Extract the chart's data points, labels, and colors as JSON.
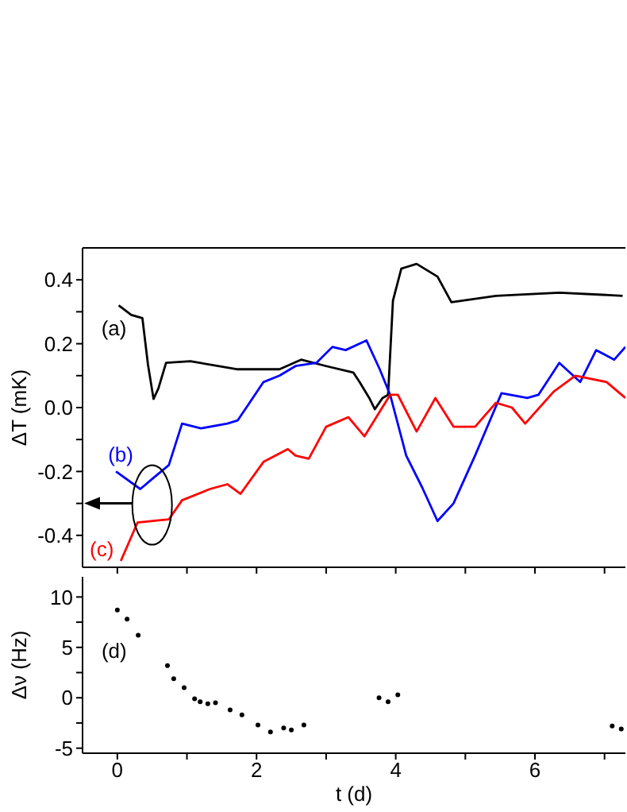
{
  "chart_data": [
    {
      "type": "line",
      "ylabel": "ΔT (mK)",
      "tick_labels": "y",
      "marker": "none",
      "xlim": [
        -0.5,
        7.3
      ],
      "xticks": [
        {
          "value": 0,
          "label": null
        },
        {
          "value": 1,
          "label": null
        },
        {
          "value": 2,
          "label": null
        },
        {
          "value": 3,
          "label": null
        },
        {
          "value": 4,
          "label": null
        },
        {
          "value": 5,
          "label": null
        },
        {
          "value": 6,
          "label": null
        },
        {
          "value": 7,
          "label": null
        }
      ],
      "ylim": [
        -0.5,
        0.5
      ],
      "yticks": [
        -0.4,
        {
          "value": -0.3,
          "label": null
        },
        -0.2,
        {
          "value": -0.1,
          "label": null
        },
        {
          "value": 0,
          "label": "0.0"
        },
        {
          "value": 0.1,
          "label": null
        },
        0.2,
        {
          "value": 0.3,
          "label": null
        },
        0.4
      ],
      "series": [
        {
          "name": "(a)",
          "color": "#000000",
          "x": [
            0.02,
            0.2,
            0.36,
            0.44,
            0.52,
            0.59,
            0.7,
            1.05,
            1.73,
            2.33,
            2.64,
            3.0,
            3.39,
            3.48,
            3.62,
            3.7,
            3.81,
            3.89,
            3.96,
            4.08,
            4.3,
            4.6,
            4.8,
            5.44,
            5.89,
            6.35,
            7.26
          ],
          "values": [
            0.32,
            0.29,
            0.28,
            0.135,
            0.027,
            0.06,
            0.14,
            0.145,
            0.12,
            0.12,
            0.15,
            0.13,
            0.11,
            0.08,
            0.03,
            -0.005,
            0.03,
            0.04,
            0.335,
            0.435,
            0.45,
            0.41,
            0.33,
            0.35,
            0.355,
            0.36,
            0.35
          ]
        },
        {
          "name": "(b)",
          "color": "#0000ff",
          "x": [
            -0.02,
            0.33,
            0.52,
            0.74,
            0.93,
            1.2,
            1.58,
            1.73,
            2.1,
            2.33,
            2.56,
            2.86,
            3.09,
            3.28,
            3.58,
            3.77,
            3.92,
            4.15,
            4.38,
            4.6,
            4.83,
            5.14,
            5.52,
            5.89,
            6.05,
            6.35,
            6.65,
            6.88,
            7.14,
            7.3
          ],
          "values": [
            -0.2,
            -0.255,
            -0.22,
            -0.18,
            -0.05,
            -0.065,
            -0.05,
            -0.04,
            0.08,
            0.1,
            0.13,
            0.14,
            0.19,
            0.18,
            0.21,
            0.12,
            0.04,
            -0.15,
            -0.25,
            -0.355,
            -0.3,
            -0.15,
            0.045,
            0.03,
            0.04,
            0.14,
            0.08,
            0.18,
            0.15,
            0.19
          ]
        },
        {
          "name": "(c)",
          "color": "#ff0000",
          "x": [
            0.05,
            0.29,
            0.74,
            0.93,
            1.33,
            1.58,
            1.77,
            2.1,
            2.45,
            2.56,
            2.75,
            3.0,
            3.32,
            3.55,
            3.92,
            4.03,
            4.3,
            4.57,
            4.83,
            5.14,
            5.44,
            5.67,
            5.86,
            6.27,
            6.58,
            7.03,
            7.3
          ],
          "values": [
            -0.48,
            -0.36,
            -0.35,
            -0.29,
            -0.255,
            -0.24,
            -0.27,
            -0.17,
            -0.13,
            -0.15,
            -0.16,
            -0.06,
            -0.03,
            -0.09,
            0.04,
            0.04,
            -0.075,
            0.03,
            -0.06,
            -0.06,
            0.015,
            0,
            -0.05,
            0.05,
            0.1,
            0.08,
            0.03
          ]
        }
      ]
    },
    {
      "type": "scatter",
      "xlabel": "t (d)",
      "ylabel": "Δν (Hz)",
      "marker": "circle",
      "xlim": [
        -0.5,
        7.3
      ],
      "xticks": [
        0,
        {
          "value": 1,
          "label": null
        },
        2,
        {
          "value": 3,
          "label": null
        },
        4,
        {
          "value": 5,
          "label": null
        },
        6,
        {
          "value": 7,
          "label": null
        }
      ],
      "ylim": [
        -5.5,
        12
      ],
      "yticks": [
        -5,
        {
          "value": -2.5,
          "label": null
        },
        0,
        {
          "value": 2.5,
          "label": null
        },
        5,
        {
          "value": 7.5,
          "label": null
        },
        10
      ],
      "series": [
        {
          "name": "(d)",
          "color": "#000000",
          "x": [
            0,
            0.14,
            0.3,
            0.72,
            0.81,
            0.96,
            1.11,
            1.19,
            1.3,
            1.41,
            1.62,
            1.79,
            2.02,
            2.2,
            2.39,
            2.5,
            2.68,
            3.76,
            3.89,
            4.03,
            7.11,
            7.24
          ],
          "values": [
            8.7,
            7.8,
            6.2,
            3.2,
            1.9,
            1.0,
            -0.1,
            -0.4,
            -0.6,
            -0.5,
            -1.2,
            -1.7,
            -2.7,
            -3.4,
            -3.0,
            -3.2,
            -2.7,
            0,
            -0.4,
            0.3,
            -2.8,
            -3.1
          ]
        }
      ]
    }
  ]
}
